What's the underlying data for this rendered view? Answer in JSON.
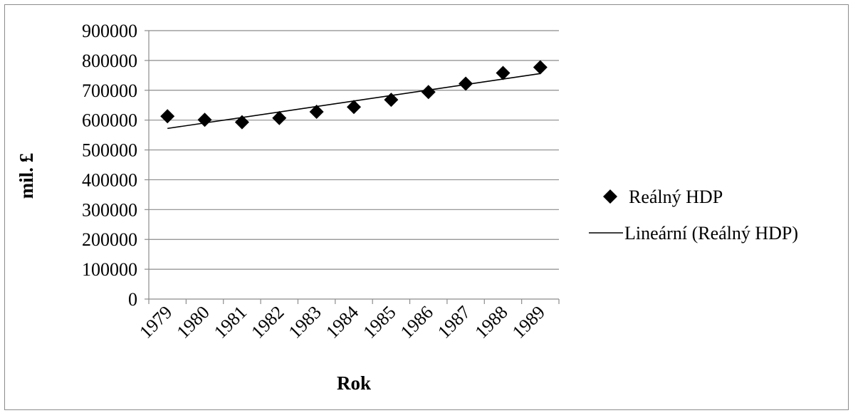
{
  "chart_data": {
    "type": "scatter",
    "xlabel": "Rok",
    "ylabel": "mil. £",
    "ylim": [
      0,
      900000
    ],
    "y_ticks": [
      "0",
      "100000",
      "200000",
      "300000",
      "400000",
      "500000",
      "600000",
      "700000",
      "800000",
      "900000"
    ],
    "categories": [
      "1979",
      "1980",
      "1981",
      "1982",
      "1983",
      "1984",
      "1985",
      "1986",
      "1987",
      "1988",
      "1989"
    ],
    "series": [
      {
        "name": "Reálný HDP",
        "marker": "diamond",
        "color": "#000000",
        "values": [
          613000,
          601000,
          593000,
          607000,
          628000,
          644000,
          668000,
          694000,
          722000,
          758000,
          777000
        ]
      }
    ],
    "trendline": {
      "name": "Lineární (Reálný HDP)",
      "type": "linear",
      "color": "#000000",
      "start": 572000,
      "end": 756000
    },
    "grid": true,
    "legend_position": "right"
  }
}
